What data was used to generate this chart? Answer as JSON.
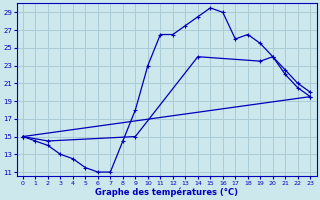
{
  "xlabel": "Graphe des températures (°C)",
  "bg_color": "#cce8ec",
  "grid_color": "#aaccd4",
  "line_color": "#0000bb",
  "xlim": [
    -0.5,
    23.5
  ],
  "ylim": [
    10.5,
    30.0
  ],
  "yticks": [
    11,
    13,
    15,
    17,
    19,
    21,
    23,
    25,
    27,
    29
  ],
  "xticks": [
    0,
    1,
    2,
    3,
    4,
    5,
    6,
    7,
    8,
    9,
    10,
    11,
    12,
    13,
    14,
    15,
    16,
    17,
    18,
    19,
    20,
    21,
    22,
    23
  ],
  "line1_x": [
    0,
    1,
    2,
    3,
    4,
    5,
    6,
    7,
    8,
    9,
    10,
    11,
    12,
    13,
    14,
    15,
    16,
    17,
    18,
    19,
    20,
    21,
    22,
    23
  ],
  "line1_y": [
    15,
    14.5,
    14.0,
    13.0,
    12.5,
    11.5,
    11.0,
    11.0,
    14.5,
    18.0,
    23.0,
    26.5,
    26.5,
    27.5,
    28.5,
    29.5,
    29.0,
    26.0,
    26.5,
    25.5,
    24.0,
    22.0,
    20.5,
    19.5
  ],
  "line2_x": [
    0,
    2,
    9,
    14,
    19,
    20,
    21,
    22,
    23
  ],
  "line2_y": [
    15,
    14.5,
    15.0,
    24.0,
    23.5,
    24.0,
    22.5,
    21.0,
    20.0
  ],
  "line3_x": [
    0,
    23
  ],
  "line3_y": [
    15.0,
    19.5
  ]
}
